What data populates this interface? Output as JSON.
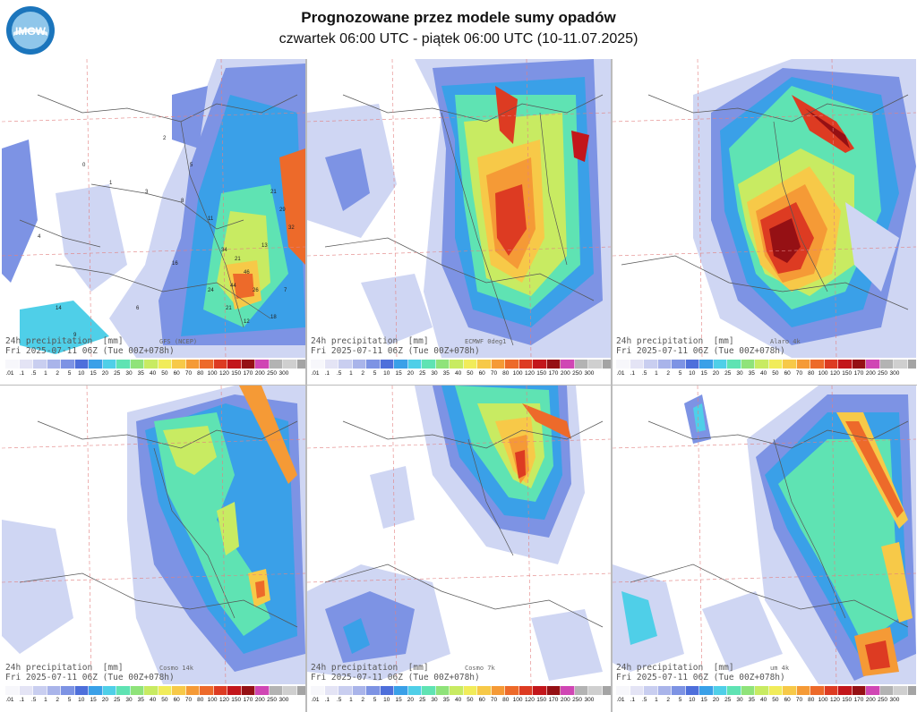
{
  "header": {
    "logo_text": "IMGW",
    "title": "Prognozowane przez modele sumy opadów",
    "subtitle": "czwartek 06:00 UTC - piątek 06:00 UTC (10-11.07.2025)"
  },
  "colors": {
    "water": "#ffffff",
    "border_lines": "#555555",
    "grid_dashed": "#e28080"
  },
  "scale": {
    "ticks": [
      ".01",
      ".1",
      ".5",
      "1",
      "2",
      "5",
      "10",
      "15",
      "20",
      "25",
      "30",
      "35",
      "40",
      "50",
      "60",
      "70",
      "80",
      "100",
      "120",
      "150",
      "170",
      "200",
      "250",
      "300"
    ],
    "colors": [
      "#f7f7fb",
      "#e4e4f5",
      "#c9cef0",
      "#a9b4ea",
      "#7d93e4",
      "#4e6fdb",
      "#3aa0e8",
      "#4fcfe8",
      "#5fe3b3",
      "#8fe37a",
      "#c8eb62",
      "#f1ec5a",
      "#f7c948",
      "#f59a36",
      "#ed6a2a",
      "#dd3b22",
      "#c3161b",
      "#951014",
      "#d046b4",
      "#b3b3b3",
      "#cfcfcf",
      "#a4a4a4",
      "#7e7e7e",
      "#5a5a5a"
    ]
  },
  "panels": [
    {
      "caption_line1": "24h precipitation  [mm]",
      "model": "GFS (NCEP)",
      "caption_line2": "Fri 2025-07-11 06Z (Tue 00Z+078h)"
    },
    {
      "caption_line1": "24h precipitation  [mm]",
      "model": "ECMWF 0deg1",
      "caption_line2": "Fri 2025-07-11 06Z (Tue 00Z+078h)"
    },
    {
      "caption_line1": "24h precipitation  [mm]",
      "model": "Alaro 4k",
      "caption_line2": "Fri 2025-07-11 06Z (Tue 00Z+078h)"
    },
    {
      "caption_line1": "24h precipitation  [mm]",
      "model": "Cosmo 14k",
      "caption_line2": "Fri 2025-07-11 06Z (Tue 00Z+078h)"
    },
    {
      "caption_line1": "24h precipitation  [mm]",
      "model": "Cosmo 7k",
      "caption_line2": "Fri 2025-07-11 06Z (Tue 00Z+078h)"
    },
    {
      "caption_line1": "24h precipitation  [mm]",
      "model": "um 4k",
      "caption_line2": "Fri 2025-07-11 06Z (Tue 00Z+078h)"
    }
  ],
  "gfs_point_values": [
    "0",
    "0",
    "0",
    "1",
    "2",
    "3",
    "4",
    "5",
    "6",
    "7",
    "8",
    "9",
    "11",
    "12",
    "13",
    "14",
    "16",
    "18",
    "21",
    "24",
    "26",
    "29",
    "32",
    "34",
    "44",
    "46"
  ]
}
